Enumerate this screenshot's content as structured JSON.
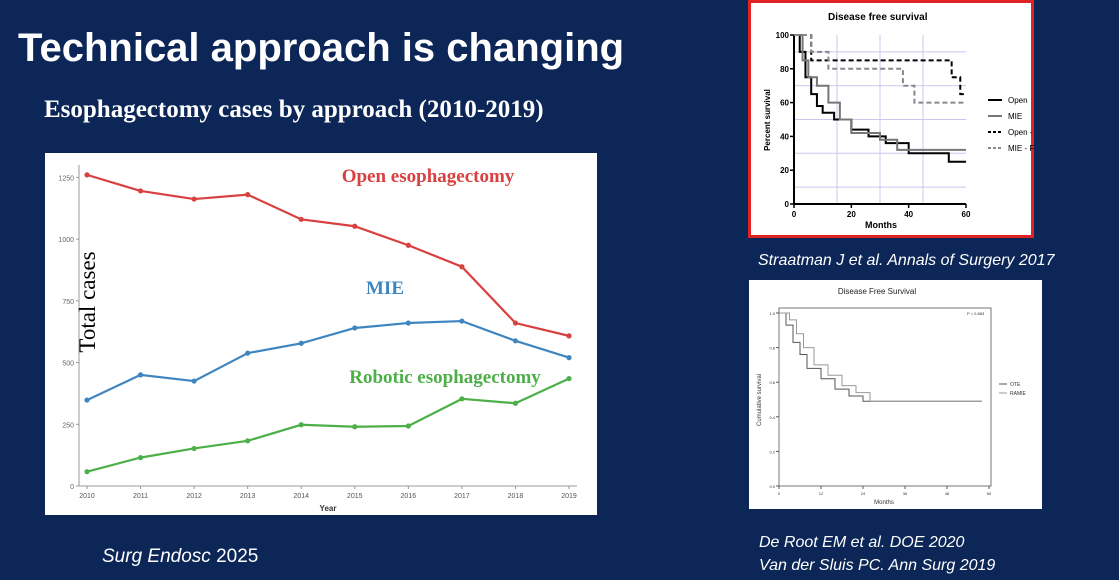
{
  "slide": {
    "title": "Technical approach is changing",
    "subtitle": "Esophagectomy cases by approach (2010-2019)",
    "source_main": "Surg Endosc 2025",
    "source_main_journal": "Surg Endosc",
    "source_main_year": "2025",
    "citation_1": "Straatman J et al. Annals of Surgery 2017",
    "citation_2": "De Root EM et al. DOE 2020",
    "citation_3": "Van der Sluis PC. Ann Surg 2019"
  },
  "chart_data": [
    {
      "type": "line",
      "title": "Esophagectomy cases by approach (2010-2019)",
      "xlabel": "Year",
      "ylabel": "Total cases",
      "categories": [
        "2010",
        "2011",
        "2012",
        "2013",
        "2014",
        "2015",
        "2016",
        "2017",
        "2018",
        "2019"
      ],
      "ylim": [
        0,
        1300
      ],
      "yticks": [
        0,
        250,
        500,
        750,
        1000,
        1250
      ],
      "ytick_labels": [
        "0",
        "250",
        "500",
        "750",
        "1000",
        "1250"
      ],
      "series": [
        {
          "name": "Open esophagectomy",
          "color": "#d94040",
          "values": [
            1260,
            1195,
            1162,
            1180,
            1080,
            1052,
            975,
            888,
            660,
            608
          ]
        },
        {
          "name": "MIE",
          "color": "#3f86c0",
          "values": [
            348,
            450,
            425,
            538,
            578,
            640,
            660,
            668,
            588,
            520
          ]
        },
        {
          "name": "Robotic esophagectomy",
          "color": "#4caf48",
          "values": [
            58,
            115,
            152,
            183,
            248,
            240,
            243,
            353,
            335,
            435
          ]
        }
      ]
    },
    {
      "type": "line",
      "title": "Disease free survival",
      "xlabel": "Months",
      "ylabel": "Percent survival",
      "xlim": [
        0,
        60
      ],
      "ylim": [
        0,
        100
      ],
      "xticks": [
        0,
        20,
        40,
        60
      ],
      "yticks": [
        0,
        20,
        40,
        60,
        80,
        100
      ],
      "series": [
        {
          "name": "Open",
          "style": "solid-black",
          "x": [
            0,
            2,
            2,
            4,
            4,
            6,
            6,
            8,
            8,
            10,
            10,
            14,
            14,
            20,
            20,
            26,
            26,
            32,
            32,
            40,
            40,
            54,
            54,
            60
          ],
          "y": [
            100,
            100,
            90,
            90,
            75,
            75,
            65,
            65,
            58,
            58,
            54,
            54,
            50,
            50,
            44,
            44,
            40,
            40,
            36,
            36,
            30,
            30,
            25,
            25
          ]
        },
        {
          "name": "MIE",
          "style": "solid-gray",
          "x": [
            0,
            3,
            3,
            5,
            5,
            8,
            8,
            12,
            12,
            16,
            16,
            20,
            20,
            30,
            30,
            36,
            36,
            60
          ],
          "y": [
            100,
            100,
            85,
            85,
            75,
            75,
            70,
            70,
            60,
            60,
            50,
            50,
            42,
            42,
            38,
            38,
            32,
            32
          ]
        },
        {
          "name": "Open - FR",
          "style": "dash-black",
          "x": [
            0,
            6,
            6,
            55,
            55,
            58,
            58,
            60
          ],
          "y": [
            100,
            100,
            85,
            85,
            75,
            75,
            65,
            65
          ]
        },
        {
          "name": "MIE - FR",
          "style": "dash-gray",
          "x": [
            0,
            6,
            6,
            12,
            12,
            38,
            38,
            42,
            42,
            60
          ],
          "y": [
            100,
            100,
            90,
            90,
            80,
            80,
            70,
            70,
            60,
            60
          ]
        }
      ]
    },
    {
      "type": "line",
      "title": "Disease Free Survival",
      "xlabel": "Months",
      "ylabel": "Cumulative survival",
      "annotation": "P = 0.883",
      "xlim": [
        0,
        60
      ],
      "ylim": [
        0,
        1.0
      ],
      "xticks": [
        0,
        12,
        24,
        36,
        48,
        60
      ],
      "yticks": [
        0.0,
        0.2,
        0.4,
        0.6,
        0.8,
        1.0
      ],
      "ytick_labels": [
        "0.0",
        "0.2",
        "0.4",
        "0.6",
        "0.8",
        "1.0"
      ],
      "series": [
        {
          "name": "OTE",
          "x": [
            0,
            2,
            2,
            4,
            4,
            6,
            6,
            8,
            8,
            12,
            12,
            16,
            16,
            20,
            20,
            24,
            24,
            58
          ],
          "y": [
            1.0,
            1.0,
            0.93,
            0.93,
            0.83,
            0.83,
            0.76,
            0.76,
            0.68,
            0.68,
            0.62,
            0.62,
            0.56,
            0.56,
            0.52,
            0.52,
            0.49,
            0.49
          ]
        },
        {
          "name": "RAMIE",
          "x": [
            0,
            3,
            3,
            5,
            5,
            7,
            7,
            10,
            10,
            14,
            14,
            18,
            18,
            22,
            22,
            26,
            26,
            58
          ],
          "y": [
            1.0,
            1.0,
            0.96,
            0.96,
            0.88,
            0.88,
            0.8,
            0.8,
            0.7,
            0.7,
            0.64,
            0.64,
            0.58,
            0.58,
            0.54,
            0.54,
            0.49,
            0.49
          ]
        }
      ]
    }
  ]
}
